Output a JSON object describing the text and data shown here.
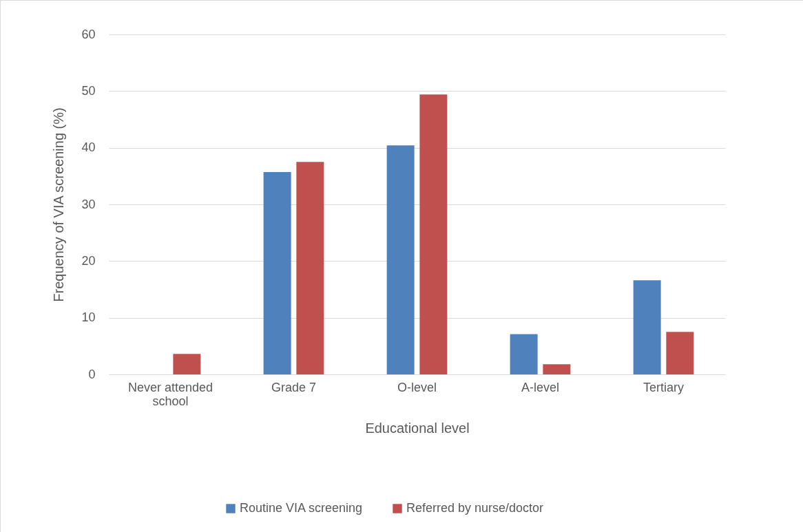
{
  "chart_data": {
    "type": "bar",
    "xlabel": "Educational level",
    "ylabel": "Frequency of VIA screening (%)",
    "categories": [
      "Never attended school",
      "Grade 7",
      "O-level",
      "A-level",
      "Tertiary"
    ],
    "series": [
      {
        "name": "Routine VIA screening",
        "color": "#4f81bd",
        "values": [
          0,
          35.7,
          40.4,
          7.1,
          16.6
        ]
      },
      {
        "name": "Referred by nurse/doctor",
        "color": "#c0504d",
        "values": [
          3.6,
          37.5,
          49.4,
          1.8,
          7.5
        ]
      }
    ],
    "ylim": [
      0,
      60
    ],
    "yticks": [
      0,
      10,
      20,
      30,
      40,
      50,
      60
    ],
    "grid": "y",
    "legend": "bottom"
  }
}
